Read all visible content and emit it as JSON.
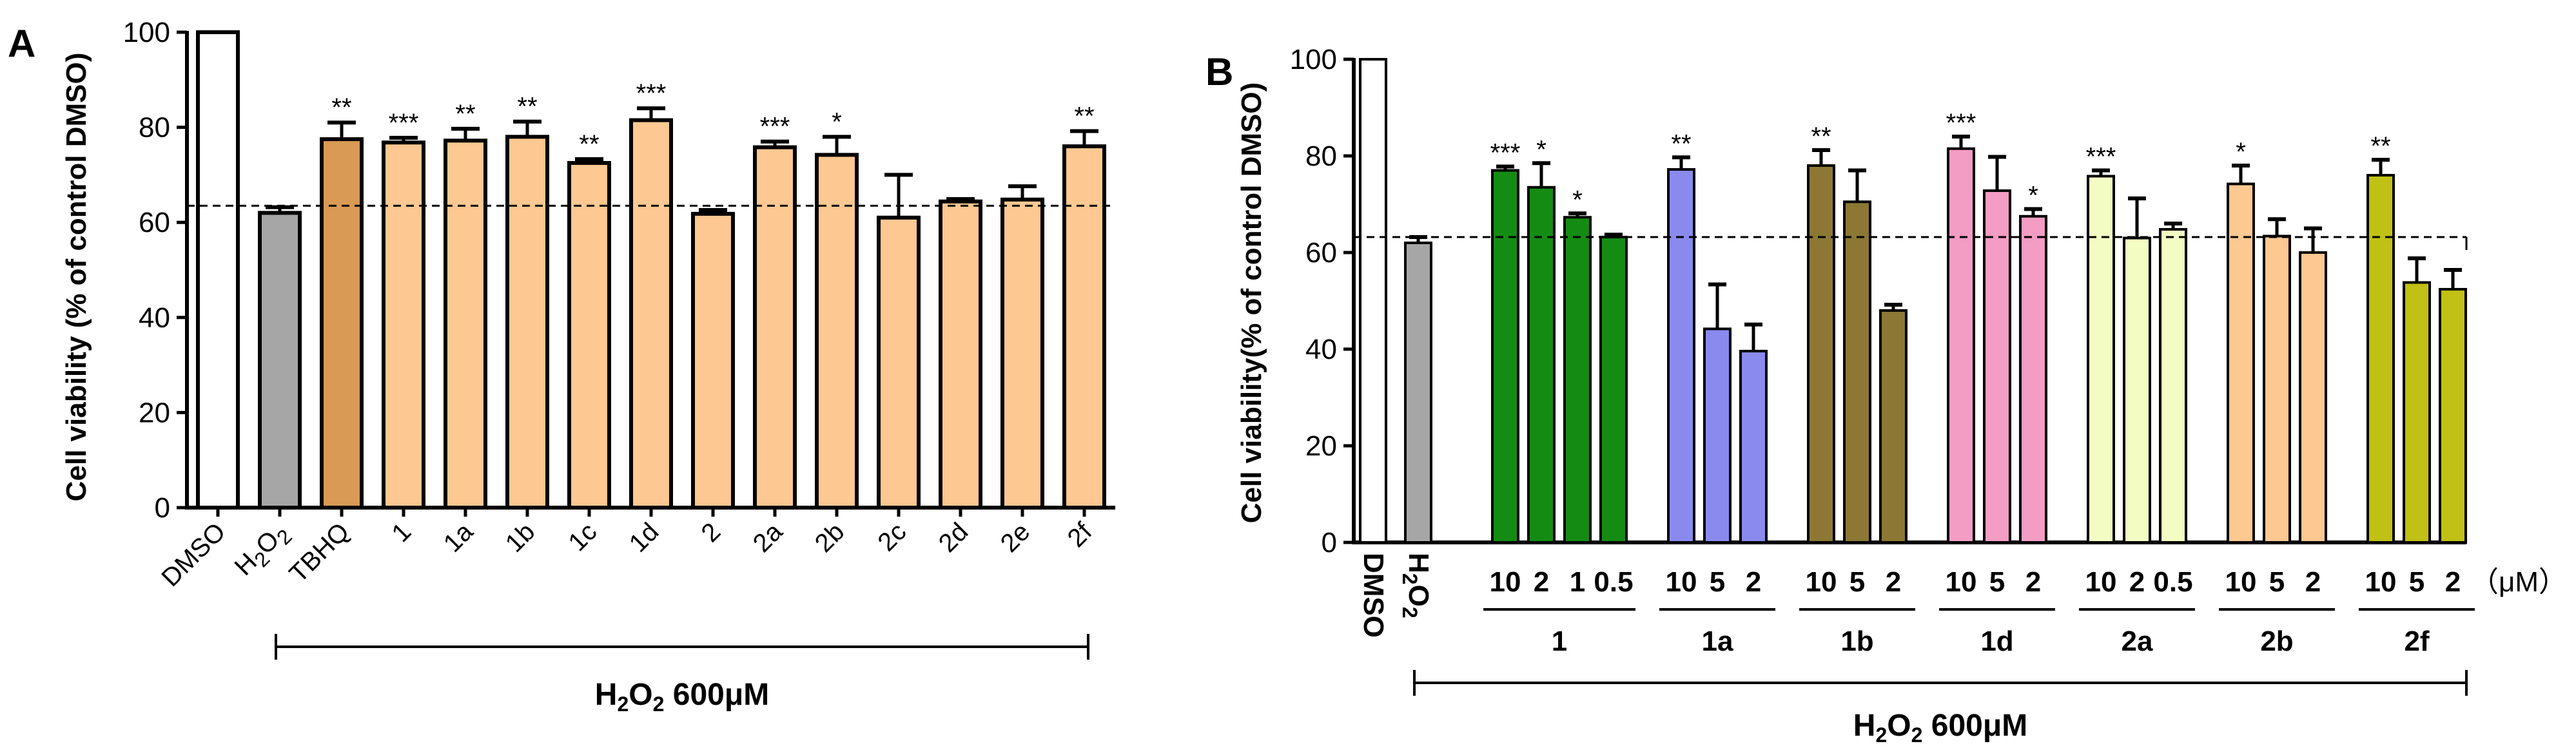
{
  "chart_data": [
    {
      "panel": "A",
      "type": "bar",
      "ylabel": "Cell viability (% of control DMSO)",
      "ylim": [
        0,
        100
      ],
      "yticks": [
        "0",
        "20",
        "40",
        "60",
        "80",
        "100"
      ],
      "reference_line": 63.5,
      "treatment": {
        "main": "H",
        "sub": "2",
        "main2": "O",
        "sub2": "2",
        "rest": " 600μM"
      },
      "bars": [
        {
          "label": "DMSO",
          "value": 100,
          "err": 0,
          "sig": "",
          "color": "#ffffff"
        },
        {
          "label": "H2O2",
          "value": 62,
          "err": 1.2,
          "sig": "",
          "color": "#a6a6a6"
        },
        {
          "label": "TBHQ",
          "value": 77.5,
          "err": 3.5,
          "sig": "**",
          "color": "#d99a55"
        },
        {
          "label": "1",
          "value": 76.8,
          "err": 1,
          "sig": "***",
          "color": "#fdc891"
        },
        {
          "label": "1a",
          "value": 77.2,
          "err": 2.5,
          "sig": "**",
          "color": "#fdc891"
        },
        {
          "label": "1b",
          "value": 78,
          "err": 3.2,
          "sig": "**",
          "color": "#fdc891"
        },
        {
          "label": "1c",
          "value": 72.5,
          "err": 0.8,
          "sig": "**",
          "color": "#fdc891"
        },
        {
          "label": "1d",
          "value": 81.5,
          "err": 2.5,
          "sig": "***",
          "color": "#fdc891"
        },
        {
          "label": "2",
          "value": 61.8,
          "err": 0.8,
          "sig": "",
          "color": "#fdc891"
        },
        {
          "label": "2a",
          "value": 75.8,
          "err": 1.2,
          "sig": "***",
          "color": "#fdc891"
        },
        {
          "label": "2b",
          "value": 74.2,
          "err": 3.8,
          "sig": "*",
          "color": "#fdc891"
        },
        {
          "label": "2c",
          "value": 61,
          "err": 9,
          "sig": "",
          "color": "#fdc891"
        },
        {
          "label": "2d",
          "value": 64.4,
          "err": 0.5,
          "sig": "",
          "color": "#fdc891"
        },
        {
          "label": "2e",
          "value": 64.8,
          "err": 2.8,
          "sig": "",
          "color": "#fdc891"
        },
        {
          "label": "2f",
          "value": 76,
          "err": 3.2,
          "sig": "**",
          "color": "#fdc891"
        }
      ]
    },
    {
      "panel": "B",
      "type": "bar",
      "ylabel": "Cell viability(% of control DMSO)",
      "ylim": [
        0,
        100
      ],
      "yticks": [
        "0",
        "20",
        "40",
        "60",
        "80",
        "100"
      ],
      "reference_line": 63.2,
      "unit_label": "（μM）",
      "treatment": {
        "main": "H",
        "sub": "2",
        "main2": "O",
        "sub2": "2",
        "rest": " 600μM"
      },
      "controls": [
        {
          "label": "DMSO",
          "value": 100,
          "err": 0,
          "sig": "",
          "color": "#ffffff"
        },
        {
          "label": "H2O2",
          "value": 62,
          "err": 1.2,
          "sig": "",
          "color": "#a6a6a6"
        }
      ],
      "groups": [
        {
          "name": "1",
          "color": "#148c14",
          "bars": [
            {
              "dose": "10",
              "value": 77,
              "err": 0.8,
              "sig": "***"
            },
            {
              "dose": "2",
              "value": 73.5,
              "err": 5,
              "sig": "*"
            },
            {
              "dose": "1",
              "value": 67.3,
              "err": 0.8,
              "sig": "*"
            },
            {
              "dose": "0.5",
              "value": 63.2,
              "err": 0.5,
              "sig": ""
            }
          ]
        },
        {
          "name": "1a",
          "color": "#8a8aee",
          "bars": [
            {
              "dose": "10",
              "value": 77.2,
              "err": 2.5,
              "sig": "**"
            },
            {
              "dose": "5",
              "value": 44.2,
              "err": 9.2,
              "sig": ""
            },
            {
              "dose": "2",
              "value": 39.6,
              "err": 5.5,
              "sig": ""
            }
          ]
        },
        {
          "name": "1b",
          "color": "#8c7834",
          "bars": [
            {
              "dose": "10",
              "value": 78,
              "err": 3.2,
              "sig": "**"
            },
            {
              "dose": "5",
              "value": 70.5,
              "err": 6.5,
              "sig": ""
            },
            {
              "dose": "2",
              "value": 48,
              "err": 1.2,
              "sig": ""
            }
          ]
        },
        {
          "name": "1d",
          "color": "#f39cc4",
          "bars": [
            {
              "dose": "10",
              "value": 81.5,
              "err": 2.5,
              "sig": "***"
            },
            {
              "dose": "5",
              "value": 72.8,
              "err": 7,
              "sig": ""
            },
            {
              "dose": "2",
              "value": 67.5,
              "err": 1.5,
              "sig": "*"
            }
          ]
        },
        {
          "name": "2a",
          "color": "#f3fcc2",
          "bars": [
            {
              "dose": "10",
              "value": 75.8,
              "err": 1.2,
              "sig": "***"
            },
            {
              "dose": "2",
              "value": 63,
              "err": 8.2,
              "sig": ""
            },
            {
              "dose": "0.5",
              "value": 64.8,
              "err": 1.2,
              "sig": ""
            }
          ]
        },
        {
          "name": "2b",
          "color": "#fdc891",
          "bars": [
            {
              "dose": "10",
              "value": 74.2,
              "err": 3.8,
              "sig": "*"
            },
            {
              "dose": "5",
              "value": 63.4,
              "err": 3.5,
              "sig": ""
            },
            {
              "dose": "2",
              "value": 60,
              "err": 5,
              "sig": ""
            }
          ]
        },
        {
          "name": "2f",
          "color": "#c0c015",
          "bars": [
            {
              "dose": "10",
              "value": 76,
              "err": 3.2,
              "sig": "**"
            },
            {
              "dose": "5",
              "value": 53.8,
              "err": 5,
              "sig": ""
            },
            {
              "dose": "2",
              "value": 52.4,
              "err": 4,
              "sig": ""
            }
          ]
        }
      ]
    }
  ]
}
